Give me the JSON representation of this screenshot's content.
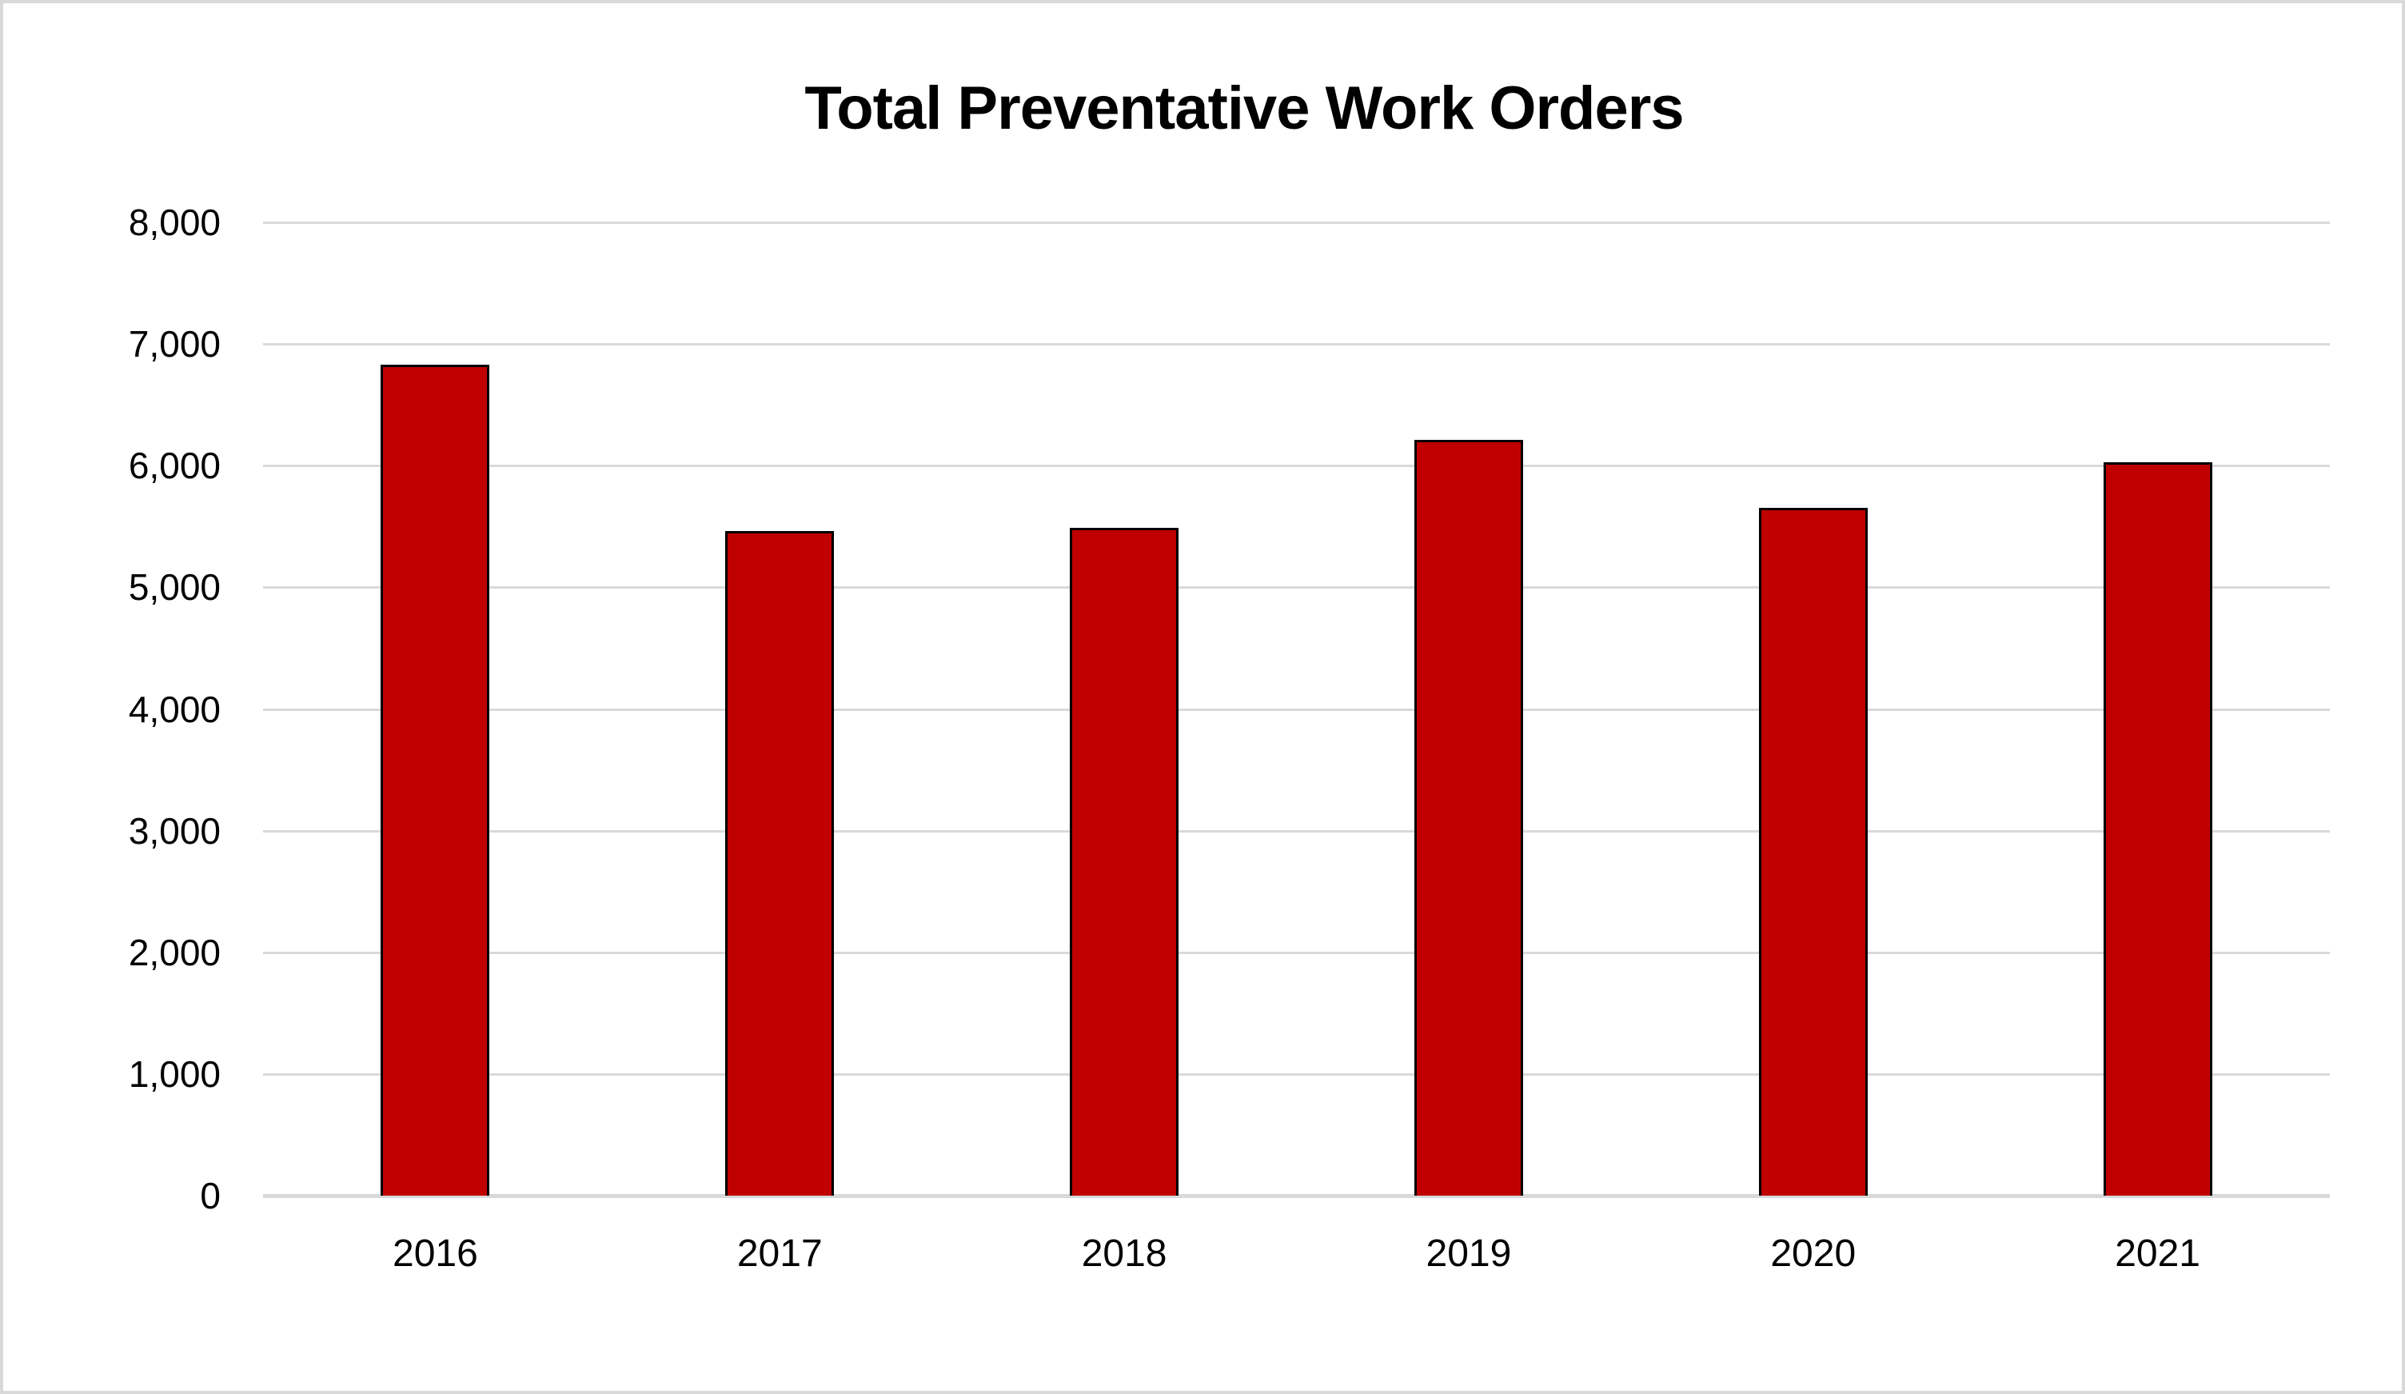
{
  "chart_data": {
    "type": "bar",
    "title": "Total Preventative Work Orders",
    "categories": [
      "2016",
      "2017",
      "2018",
      "2019",
      "2020",
      "2021"
    ],
    "values": [
      6830,
      5460,
      5490,
      6210,
      5650,
      6030
    ],
    "xlabel": "",
    "ylabel": "",
    "ylim": [
      0,
      8000
    ],
    "ytick_step": 1000,
    "ytick_labels": [
      "0",
      "1,000",
      "2,000",
      "3,000",
      "4,000",
      "5,000",
      "6,000",
      "7,000",
      "8,000"
    ],
    "grid": "horizontal",
    "legend": "none",
    "colors": {
      "bar_fill": "#c00000",
      "bar_border": "#000000",
      "gridline": "#d9d9d9",
      "canvas_border": "#d9d9d9",
      "text": "#000000",
      "background": "#ffffff"
    }
  }
}
